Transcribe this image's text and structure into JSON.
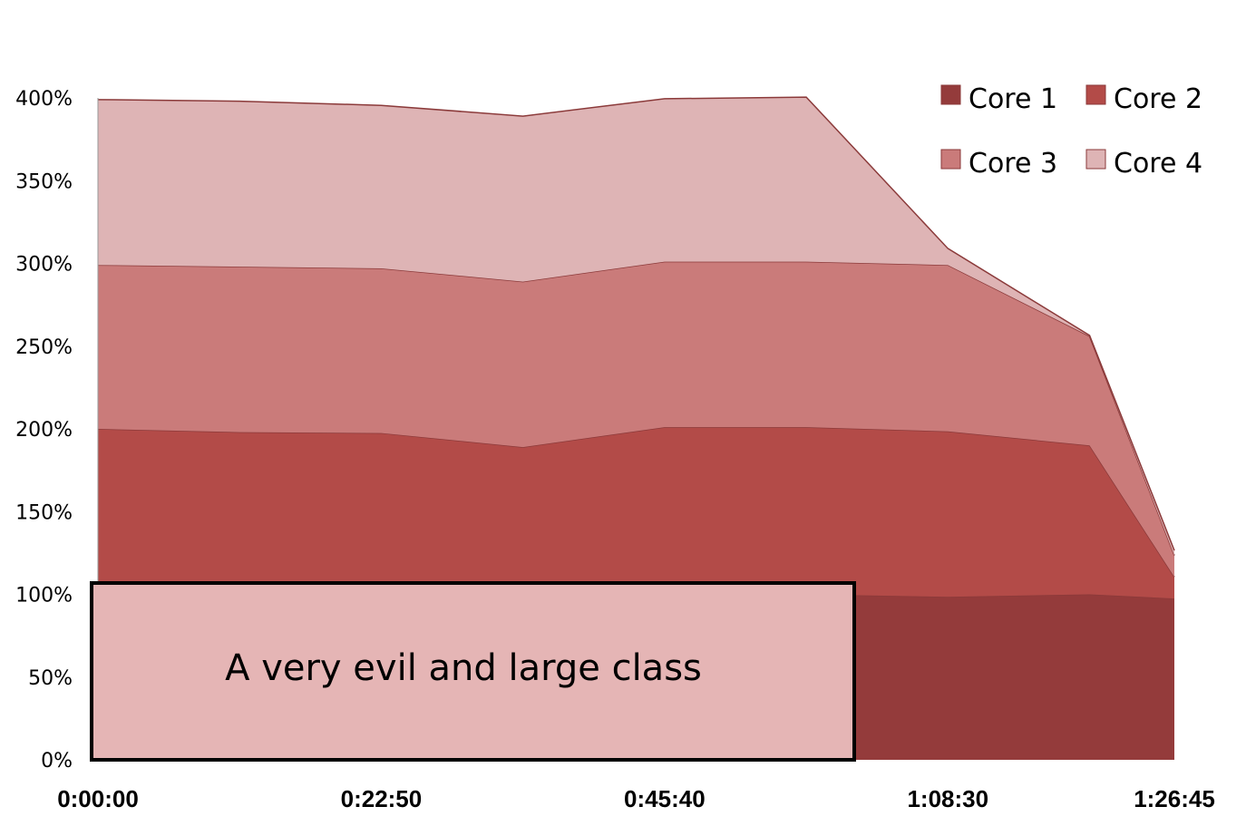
{
  "chart_data": {
    "type": "area",
    "stacked": true,
    "x": [
      "0:00:00",
      "0:11:25",
      "0:22:50",
      "0:34:15",
      "0:45:40",
      "0:57:05",
      "1:08:30",
      "1:19:55",
      "1:26:45"
    ],
    "x_ticks": [
      "0:00:00",
      "0:22:50",
      "0:45:40",
      "1:08:30",
      "1:26:45"
    ],
    "y_ticks": [
      "0%",
      "50%",
      "100%",
      "150%",
      "200%",
      "250%",
      "300%",
      "350%",
      "400%"
    ],
    "ylim": [
      0,
      400
    ],
    "y_unit": "%",
    "series": [
      {
        "name": "Core 1",
        "color": "#943b3b",
        "values": [
          100,
          100,
          100,
          100,
          100,
          100,
          98.5,
          100,
          97.5
        ]
      },
      {
        "name": "Core 2",
        "color": "#b34b48",
        "values": [
          100,
          98,
          97.5,
          89,
          101,
          101,
          100,
          90,
          13
        ]
      },
      {
        "name": "Core 3",
        "color": "#ca7b7a",
        "values": [
          99,
          100,
          99.5,
          100,
          100,
          100,
          100.5,
          66,
          13
        ]
      },
      {
        "name": "Core 4",
        "color": "#deb4b5",
        "values": [
          100,
          100,
          98.5,
          100,
          98.5,
          99.5,
          10,
          0.5,
          3
        ]
      }
    ],
    "legend_position": "top-right",
    "grid": false,
    "line_color": "#8b3a3a"
  },
  "callout": {
    "text": "A very evil and large class",
    "fill": "#e5b5b5",
    "border": "#000000"
  }
}
